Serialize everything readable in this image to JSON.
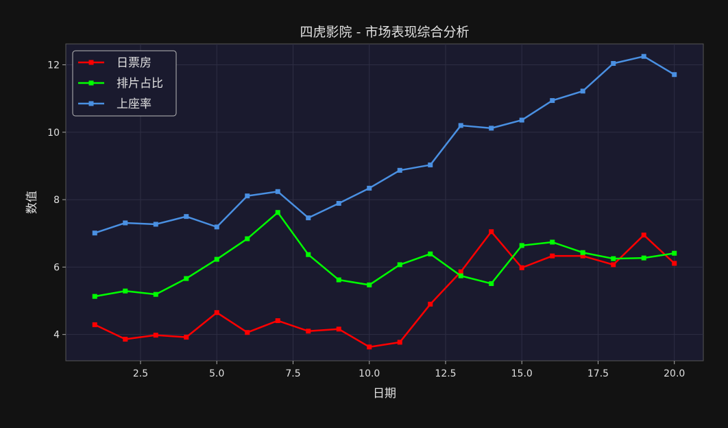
{
  "chart_data": {
    "type": "line",
    "title": "四虎影院 - 市场表现综合分析",
    "xlabel": "日期",
    "ylabel": "数值",
    "xlim": [
      0.05,
      20.95
    ],
    "ylim": [
      3.22,
      12.62
    ],
    "xticks": [
      2.5,
      5.0,
      7.5,
      10.0,
      12.5,
      15.0,
      17.5,
      20.0
    ],
    "xtick_labels": [
      "2.5",
      "5.0",
      "7.5",
      "10.0",
      "12.5",
      "15.0",
      "17.5",
      "20.0"
    ],
    "yticks": [
      4,
      6,
      8,
      10,
      12
    ],
    "ytick_labels": [
      "4",
      "6",
      "8",
      "10",
      "12"
    ],
    "grid": true,
    "legend_position": "top-left",
    "x": [
      1,
      2,
      3,
      4,
      5,
      6,
      7,
      8,
      9,
      10,
      11,
      12,
      13,
      14,
      15,
      16,
      17,
      18,
      19,
      20
    ],
    "series": [
      {
        "name": "日票房",
        "color": "#ff0000",
        "marker": "square",
        "values": [
          4.29,
          3.86,
          3.98,
          3.92,
          4.65,
          4.06,
          4.41,
          4.1,
          4.16,
          3.63,
          3.77,
          4.9,
          5.86,
          7.05,
          5.98,
          6.33,
          6.33,
          6.07,
          6.95,
          6.11
        ]
      },
      {
        "name": "排片占比",
        "color": "#00ff00",
        "marker": "square",
        "values": [
          5.13,
          5.29,
          5.19,
          5.66,
          6.23,
          6.84,
          7.62,
          6.37,
          5.62,
          5.47,
          6.07,
          6.39,
          5.74,
          5.51,
          6.64,
          6.74,
          6.43,
          6.25,
          6.27,
          6.41
        ]
      },
      {
        "name": "上座率",
        "color": "#4a90e2",
        "marker": "square",
        "values": [
          7.01,
          7.31,
          7.27,
          7.5,
          7.19,
          8.11,
          8.24,
          7.46,
          7.89,
          8.34,
          8.87,
          9.03,
          10.2,
          10.12,
          10.36,
          10.94,
          11.22,
          12.04,
          12.25,
          11.71
        ]
      }
    ],
    "colors": {
      "figure_bg": "#121212",
      "plot_bg": "#1a1a2e",
      "grid": "#2e2e44",
      "text": "#e0e0e0"
    }
  }
}
